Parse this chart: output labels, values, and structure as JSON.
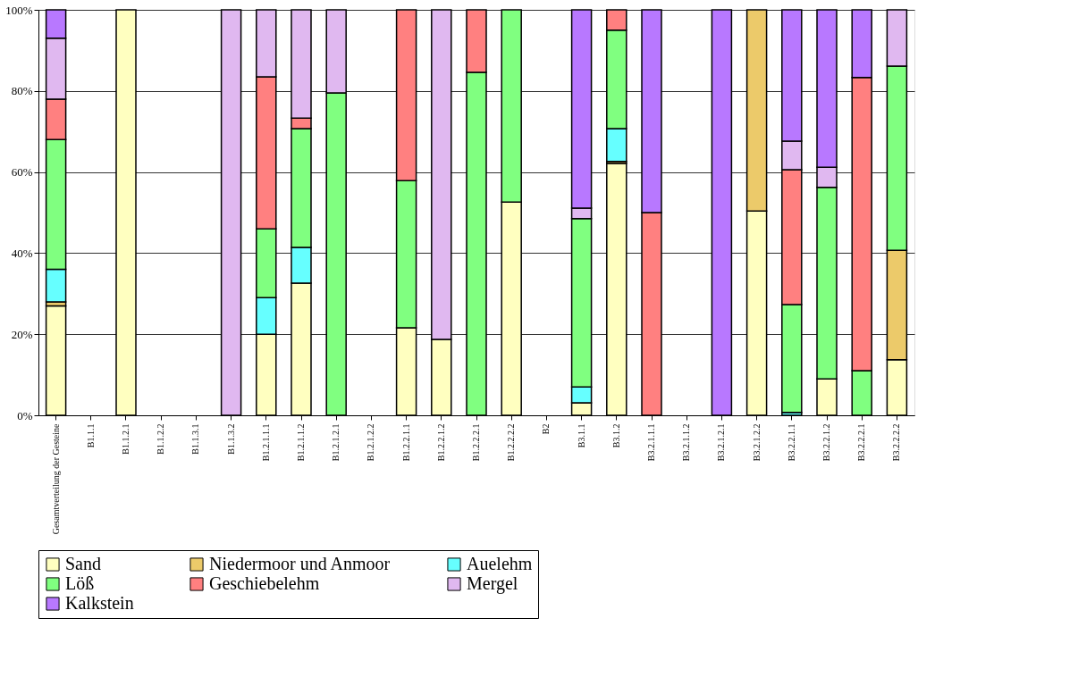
{
  "chart_data": {
    "type": "bar",
    "stacked": true,
    "categories": [
      "Gesamtverteilung der Gesteine",
      "B1.1.1",
      "B1.1.2.1",
      "B1.1.2.2",
      "B1.1.3.1",
      "B1.1.3.2",
      "B1.2.1.1.1",
      "B1.2.1.1.2",
      "B1.2.1.2.1",
      "B1.2.1.2.2",
      "B1.2.2.1.1",
      "B1.2.2.1.2",
      "B1.2.2.2.1",
      "B1.2.2.2.2",
      "B2",
      "B3.1.1",
      "B3.1.2",
      "B3.2.1.1.1",
      "B3.2.1.1.2",
      "B3.2.1.2.1",
      "B3.2.1.2.2",
      "B3.2.2.1.1",
      "B3.2.2.1.2",
      "B3.2.2.2.1",
      "B3.2.2.2.2"
    ],
    "series": [
      {
        "name": "Sand",
        "color": "#ffffc0",
        "values": [
          27,
          null,
          100,
          null,
          null,
          null,
          20,
          32.6,
          null,
          null,
          21.6,
          18.7,
          null,
          52.6,
          null,
          3.1,
          62.1,
          null,
          null,
          null,
          50.4,
          null,
          9,
          null,
          13.7
        ]
      },
      {
        "name": "Niedermoor und Anmoor",
        "color": "#ecca6a",
        "values": [
          1,
          null,
          null,
          null,
          null,
          null,
          null,
          null,
          null,
          null,
          null,
          null,
          null,
          null,
          null,
          null,
          0.5,
          null,
          null,
          null,
          49.6,
          null,
          null,
          null,
          27
        ]
      },
      {
        "name": "Auelehm",
        "color": "#66ffff",
        "values": [
          8,
          null,
          null,
          null,
          null,
          null,
          9,
          8.8,
          null,
          null,
          null,
          null,
          null,
          null,
          null,
          3.9,
          8.1,
          null,
          null,
          null,
          null,
          0.7,
          null,
          null,
          null
        ]
      },
      {
        "name": "Löß",
        "color": "#80ff80",
        "values": [
          32,
          null,
          null,
          null,
          null,
          null,
          17,
          29.3,
          79.5,
          null,
          36.3,
          null,
          84.6,
          47.4,
          null,
          41.5,
          24.3,
          null,
          null,
          null,
          null,
          26.6,
          47.2,
          11,
          45.4
        ]
      },
      {
        "name": "Geschiebelehm",
        "color": "#ff8080",
        "values": [
          10,
          null,
          null,
          null,
          null,
          null,
          37.5,
          2.6,
          null,
          null,
          42.1,
          null,
          15.4,
          null,
          null,
          null,
          5,
          50,
          null,
          null,
          null,
          33.3,
          null,
          72.3,
          null
        ]
      },
      {
        "name": "Mergel",
        "color": "#e0b8f0",
        "values": [
          15,
          null,
          null,
          null,
          null,
          100,
          16.5,
          26.7,
          20.5,
          null,
          null,
          81.3,
          null,
          null,
          null,
          2.6,
          null,
          null,
          null,
          null,
          null,
          7,
          5,
          null,
          13.9
        ]
      },
      {
        "name": "Kalkstein",
        "color": "#b878ff",
        "values": [
          7,
          null,
          null,
          null,
          null,
          null,
          null,
          null,
          null,
          null,
          null,
          null,
          null,
          null,
          null,
          48.9,
          null,
          50,
          null,
          100,
          null,
          32.4,
          38.8,
          16.7,
          null
        ]
      }
    ],
    "ylim": [
      0,
      100
    ],
    "yticks": [
      {
        "value": 0,
        "label": "0%"
      },
      {
        "value": 20,
        "label": "20%"
      },
      {
        "value": 40,
        "label": "40%"
      },
      {
        "value": 60,
        "label": "60%"
      },
      {
        "value": 80,
        "label": "80%"
      },
      {
        "value": 100,
        "label": "100%"
      }
    ],
    "grid": "y",
    "legend": "bottom"
  }
}
